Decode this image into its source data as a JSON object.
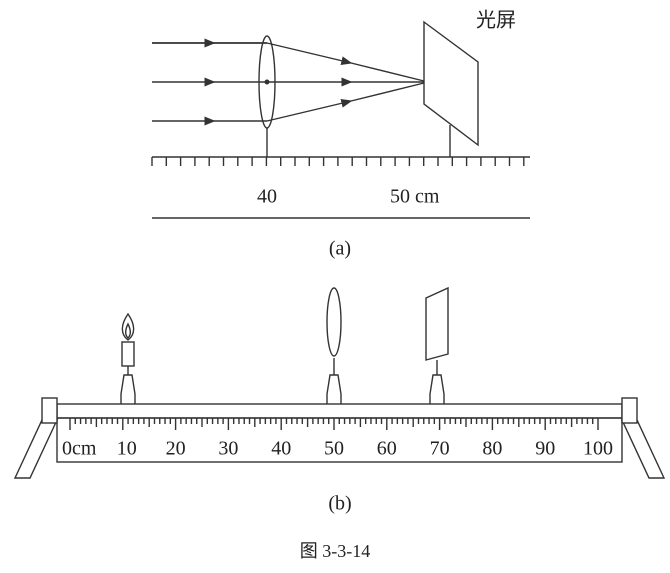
{
  "figure_a": {
    "screen_label": "光屏",
    "ticks": [
      "40",
      "50 cm"
    ],
    "caption": "(a)"
  },
  "figure_b": {
    "scale_labels": [
      "0cm",
      "10",
      "20",
      "30",
      "40",
      "50",
      "60",
      "70",
      "80",
      "90",
      "100"
    ],
    "caption": "(b)"
  },
  "figure_caption": "图 3-3-14"
}
